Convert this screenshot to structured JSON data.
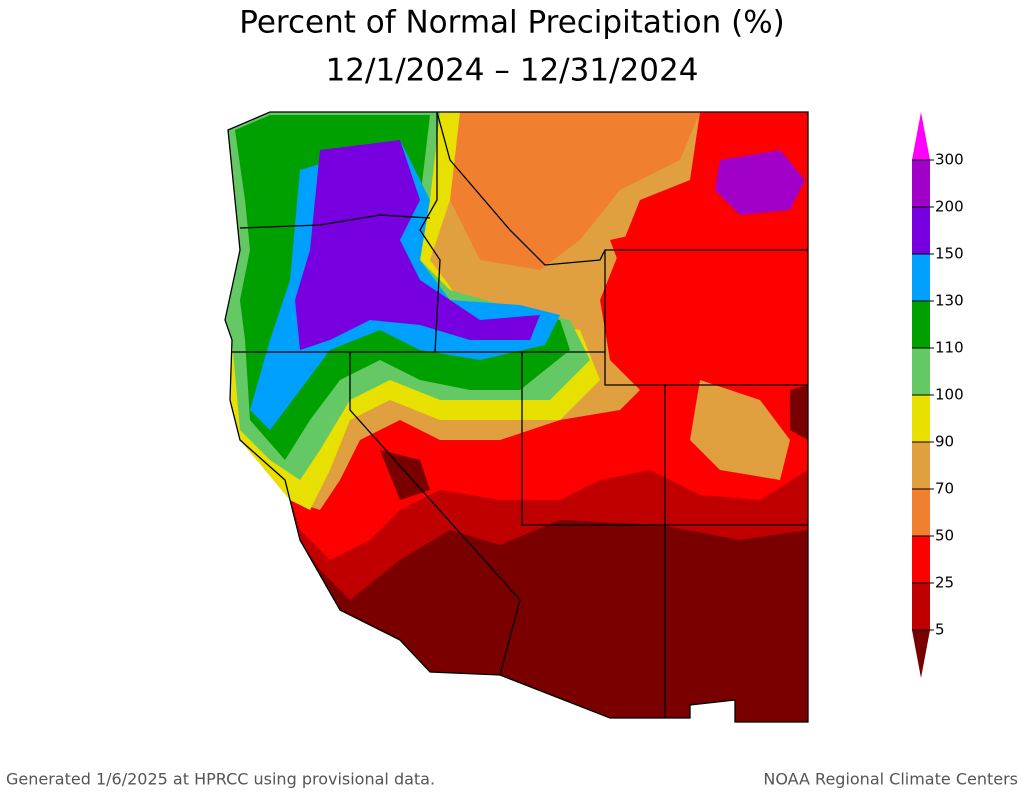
{
  "header": {
    "title": "Percent of Normal Precipitation (%)",
    "subtitle": "12/1/2024 – 12/31/2024"
  },
  "legend": {
    "ticks": [
      5,
      25,
      50,
      70,
      90,
      100,
      110,
      130,
      150,
      200,
      300
    ],
    "colors": [
      "#7a0000",
      "#c00000",
      "#ff0000",
      "#f08030",
      "#e0a040",
      "#e8e000",
      "#64c864",
      "#00a000",
      "#00a0ff",
      "#7800e0",
      "#a000c8",
      "#ff00ff"
    ]
  },
  "footer": {
    "left": "Generated 1/6/2025 at HPRCC using provisional data.",
    "right": "NOAA Regional Climate Centers"
  }
}
